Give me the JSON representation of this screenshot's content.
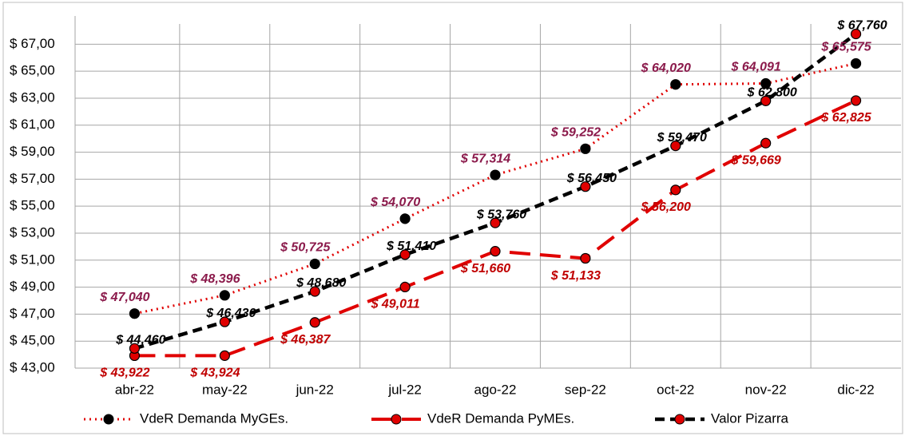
{
  "chart_data": {
    "type": "line",
    "categories": [
      "abr-22",
      "may-22",
      "jun-22",
      "jul-22",
      "ago-22",
      "sep-22",
      "oct-22",
      "nov-22",
      "dic-22"
    ],
    "series": [
      {
        "name": "VdeR Demanda MyGEs.",
        "color": "#e00000",
        "marker_color": "#000000",
        "label_color": "#8b1a4b",
        "dash": "dotted",
        "values": [
          47.04,
          48.396,
          50.725,
          54.07,
          57.314,
          59.252,
          64.02,
          64.091,
          65.575
        ],
        "value_labels": [
          "$ 47,040",
          "$ 48,396",
          "$ 50,725",
          "$ 54,070",
          "$ 57,314",
          "$ 59,252",
          "$ 64,020",
          "$ 64,091",
          "$ 65,575"
        ]
      },
      {
        "name": "VdeR Demanda PyMEs.",
        "color": "#e00000",
        "marker_color": "#e00000",
        "label_color": "#c00000",
        "dash": "long",
        "values": [
          43.922,
          43.924,
          46.387,
          49.011,
          51.66,
          51.133,
          56.2,
          59.669,
          62.825
        ],
        "value_labels": [
          "$ 43,922",
          "$ 43,924",
          "$ 46,387",
          "$ 49,011",
          "$ 51,660",
          "$ 51,133",
          "$ 56,200",
          "$ 59,669",
          "$ 62,825"
        ]
      },
      {
        "name": "Valor Pizarra",
        "color": "#000000",
        "marker_color": "#e00000",
        "label_color": "#000000",
        "dash": "short",
        "values": [
          44.46,
          46.43,
          48.68,
          51.41,
          53.76,
          56.45,
          59.47,
          62.8,
          67.76
        ],
        "value_labels": [
          "$ 44,460",
          "$ 46,430",
          "$ 48,680",
          "$ 51,410",
          "$ 53,760",
          "$ 56,450",
          "$ 59,470",
          "$ 62,800",
          "$ 67,760"
        ]
      }
    ],
    "ylim": [
      43,
      68.5
    ],
    "yticks": [
      {
        "value": 43,
        "label": "$ 43,00"
      },
      {
        "value": 45,
        "label": "$ 45,00"
      },
      {
        "value": 47,
        "label": "$ 47,00"
      },
      {
        "value": 49,
        "label": "$ 49,00"
      },
      {
        "value": 51,
        "label": "$ 51,00"
      },
      {
        "value": 53,
        "label": "$ 53,00"
      },
      {
        "value": 55,
        "label": "$ 55,00"
      },
      {
        "value": 57,
        "label": "$ 57,00"
      },
      {
        "value": 59,
        "label": "$ 59,00"
      },
      {
        "value": 61,
        "label": "$ 61,00"
      },
      {
        "value": 63,
        "label": "$ 63,00"
      },
      {
        "value": 65,
        "label": "$ 65,00"
      },
      {
        "value": 67,
        "label": "$ 67,00"
      }
    ],
    "grid": true,
    "legend": "bottom"
  }
}
